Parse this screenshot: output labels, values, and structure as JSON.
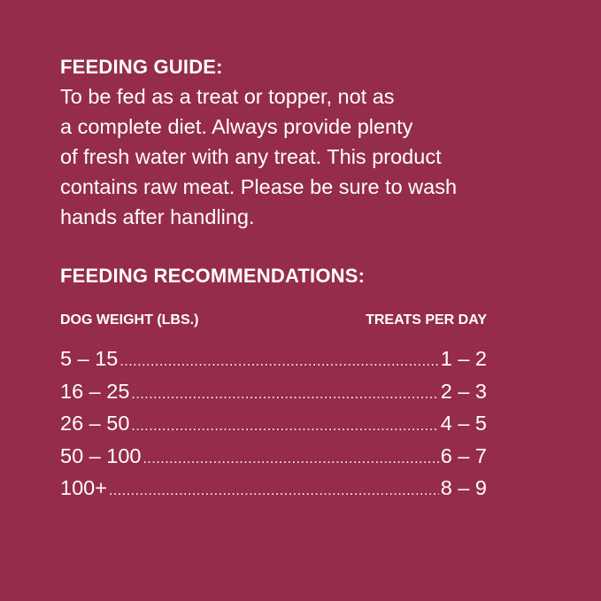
{
  "guide": {
    "title": "FEEDING GUIDE:",
    "lines": [
      "To be fed as a treat or topper, not as",
      "a complete diet. Always provide plenty",
      "of fresh water with any treat. This product",
      "contains raw meat. Please be sure to wash",
      "hands after handling."
    ]
  },
  "recommendations": {
    "title": "FEEDING RECOMMENDATIONS:",
    "columns": [
      "DOG WEIGHT (LBS.)",
      "TREATS PER DAY"
    ],
    "rows": [
      {
        "weight": "5 – 15",
        "treats": "1 – 2"
      },
      {
        "weight": "16 – 25",
        "treats": "2 – 3"
      },
      {
        "weight": "26 – 50",
        "treats": "4 – 5"
      },
      {
        "weight": "50 – 100",
        "treats": "6 – 7"
      },
      {
        "weight": "100+",
        "treats": "8 – 9"
      }
    ]
  },
  "colors": {
    "background": "#952c4a",
    "text": "#ffffff"
  }
}
